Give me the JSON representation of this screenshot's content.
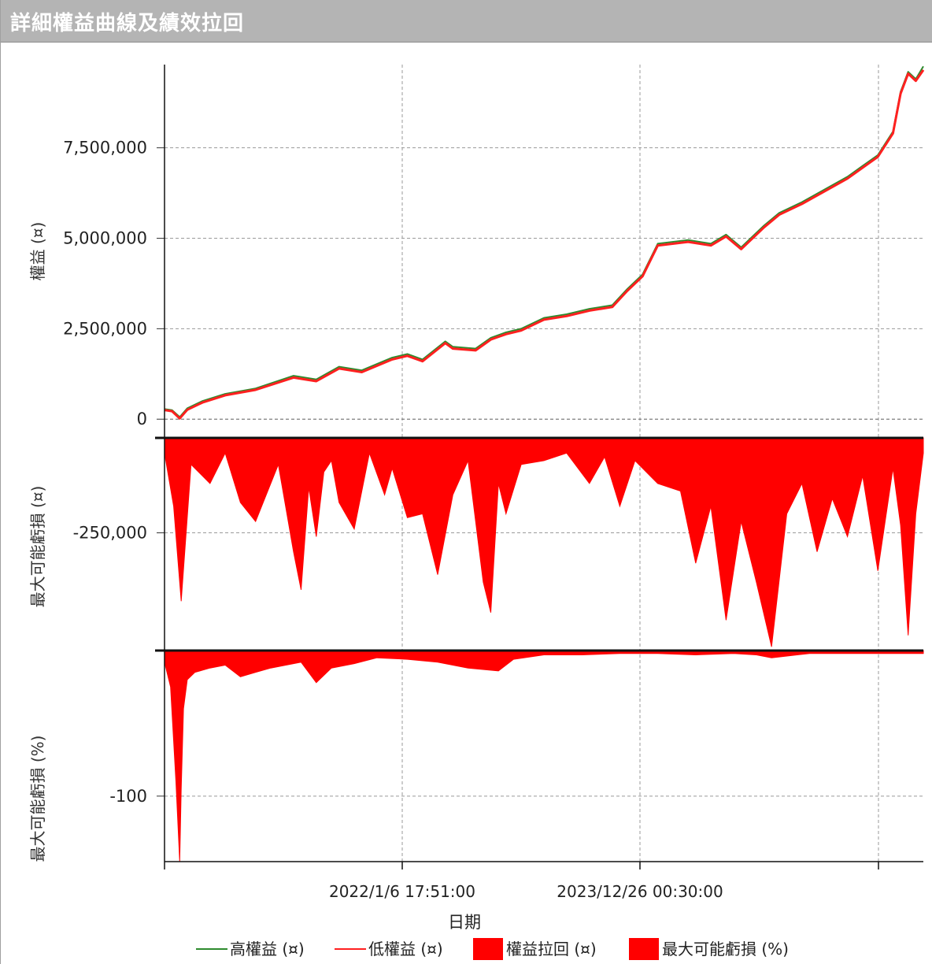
{
  "window": {
    "title": "詳細權益曲線及績效拉回"
  },
  "chart_data": [
    {
      "type": "line",
      "panel": "equity",
      "ylabel": "權益 (¤)",
      "ylim": [
        -300000,
        9800000
      ],
      "yticks": [
        0,
        2500000,
        5000000,
        7500000
      ],
      "ytick_labels": [
        "0",
        "2,500,000",
        "5,000,000",
        "7,500,000"
      ],
      "grid": true,
      "x_range": [
        0,
        1
      ],
      "series": [
        {
          "name": "高權益 (¤)",
          "color": "#2e8b2e",
          "x": [
            0,
            0.01,
            0.02,
            0.03,
            0.05,
            0.08,
            0.12,
            0.17,
            0.2,
            0.23,
            0.26,
            0.3,
            0.32,
            0.34,
            0.37,
            0.38,
            0.41,
            0.43,
            0.45,
            0.47,
            0.5,
            0.53,
            0.56,
            0.59,
            0.61,
            0.63,
            0.65,
            0.69,
            0.72,
            0.74,
            0.76,
            0.79,
            0.81,
            0.84,
            0.87,
            0.9,
            0.92,
            0.94,
            0.96,
            0.97,
            0.98,
            0.99,
            1.0
          ],
          "values": [
            280000,
            250000,
            60000,
            300000,
            500000,
            700000,
            850000,
            1200000,
            1100000,
            1450000,
            1350000,
            1700000,
            1800000,
            1650000,
            2150000,
            2000000,
            1950000,
            2250000,
            2400000,
            2500000,
            2800000,
            2900000,
            3050000,
            3150000,
            3600000,
            4000000,
            4850000,
            4950000,
            4850000,
            5100000,
            4750000,
            5350000,
            5700000,
            6000000,
            6350000,
            6700000,
            7000000,
            7300000,
            7950000,
            9050000,
            9600000,
            9400000,
            9750000
          ]
        },
        {
          "name": "低權益 (¤)",
          "color": "#ff2020",
          "x": [
            0,
            0.01,
            0.02,
            0.03,
            0.05,
            0.08,
            0.12,
            0.17,
            0.2,
            0.23,
            0.26,
            0.3,
            0.32,
            0.34,
            0.37,
            0.38,
            0.41,
            0.43,
            0.45,
            0.47,
            0.5,
            0.53,
            0.56,
            0.59,
            0.61,
            0.63,
            0.65,
            0.69,
            0.72,
            0.74,
            0.76,
            0.79,
            0.81,
            0.84,
            0.87,
            0.9,
            0.92,
            0.94,
            0.96,
            0.97,
            0.98,
            0.99,
            1.0
          ],
          "values": [
            250000,
            220000,
            20000,
            260000,
            460000,
            660000,
            810000,
            1150000,
            1050000,
            1400000,
            1300000,
            1650000,
            1750000,
            1600000,
            2100000,
            1950000,
            1900000,
            2200000,
            2350000,
            2450000,
            2750000,
            2850000,
            3000000,
            3100000,
            3550000,
            3950000,
            4800000,
            4900000,
            4800000,
            5050000,
            4700000,
            5300000,
            5650000,
            5950000,
            6300000,
            6650000,
            6950000,
            7250000,
            7900000,
            9000000,
            9550000,
            9350000,
            9650000
          ]
        }
      ]
    },
    {
      "type": "area",
      "panel": "drawdown_amount",
      "ylabel": "最大可能虧損 (¤)",
      "ylim": [
        -560000,
        0
      ],
      "yticks": [
        -250000
      ],
      "ytick_labels": [
        "-250,000"
      ],
      "grid": true,
      "series": [
        {
          "name": "權益拉回 (¤)",
          "color": "#ff0000",
          "x": [
            0,
            0.012,
            0.022,
            0.035,
            0.06,
            0.08,
            0.1,
            0.12,
            0.15,
            0.17,
            0.18,
            0.19,
            0.2,
            0.21,
            0.22,
            0.23,
            0.25,
            0.27,
            0.29,
            0.3,
            0.32,
            0.34,
            0.36,
            0.38,
            0.4,
            0.42,
            0.43,
            0.44,
            0.45,
            0.47,
            0.5,
            0.53,
            0.56,
            0.58,
            0.6,
            0.62,
            0.65,
            0.68,
            0.7,
            0.72,
            0.74,
            0.76,
            0.78,
            0.8,
            0.82,
            0.84,
            0.86,
            0.88,
            0.9,
            0.92,
            0.94,
            0.96,
            0.97,
            0.98,
            0.99,
            1.0
          ],
          "values": [
            -40000,
            -180000,
            -430000,
            -70000,
            -120000,
            -40000,
            -170000,
            -220000,
            -70000,
            -300000,
            -400000,
            -130000,
            -260000,
            -90000,
            -60000,
            -170000,
            -240000,
            -40000,
            -150000,
            -80000,
            -210000,
            -200000,
            -360000,
            -150000,
            -60000,
            -380000,
            -460000,
            -120000,
            -200000,
            -70000,
            -60000,
            -40000,
            -120000,
            -50000,
            -180000,
            -60000,
            -120000,
            -140000,
            -330000,
            -180000,
            -480000,
            -220000,
            -380000,
            -550000,
            -200000,
            -120000,
            -300000,
            -160000,
            -260000,
            -100000,
            -350000,
            -80000,
            -230000,
            -520000,
            -200000,
            -40000
          ]
        }
      ]
    },
    {
      "type": "area",
      "panel": "drawdown_percent",
      "ylabel": "最大可能虧損 (%)",
      "ylim": [
        -145,
        0
      ],
      "yticks": [
        -100
      ],
      "ytick_labels": [
        "-100"
      ],
      "grid": true,
      "series": [
        {
          "name": "最大可能虧損 (%)",
          "color": "#ff0000",
          "x": [
            0,
            0.008,
            0.015,
            0.02,
            0.022,
            0.025,
            0.03,
            0.04,
            0.06,
            0.08,
            0.1,
            0.12,
            0.14,
            0.16,
            0.18,
            0.2,
            0.22,
            0.25,
            0.28,
            0.32,
            0.36,
            0.4,
            0.44,
            0.46,
            0.5,
            0.55,
            0.6,
            0.65,
            0.7,
            0.75,
            0.78,
            0.8,
            0.85,
            0.9,
            0.95,
            1.0
          ],
          "values": [
            -8,
            -25,
            -90,
            -145,
            -95,
            -40,
            -20,
            -15,
            -12,
            -10,
            -18,
            -15,
            -12,
            -10,
            -8,
            -22,
            -12,
            -9,
            -5,
            -6,
            -8,
            -12,
            -14,
            -6,
            -3,
            -3,
            -2,
            -2,
            -3,
            -2,
            -3,
            -5,
            -2,
            -2,
            -2,
            -2
          ]
        }
      ]
    }
  ],
  "x_axis": {
    "label": "日期",
    "tick_labels": [
      "2022/1/6 17:51:00",
      "2023/12/26 00:30:00"
    ]
  },
  "legend": {
    "placement": "bottom",
    "items": [
      {
        "label": "高權益 (¤)",
        "symbol": "line",
        "color": "#2e8b2e"
      },
      {
        "label": "低權益 (¤)",
        "symbol": "line",
        "color": "#ff2020"
      },
      {
        "label": "權益拉回 (¤)",
        "symbol": "box",
        "color": "#ff0000"
      },
      {
        "label": "最大可能虧損 (%)",
        "symbol": "box",
        "color": "#ff0000"
      }
    ]
  }
}
